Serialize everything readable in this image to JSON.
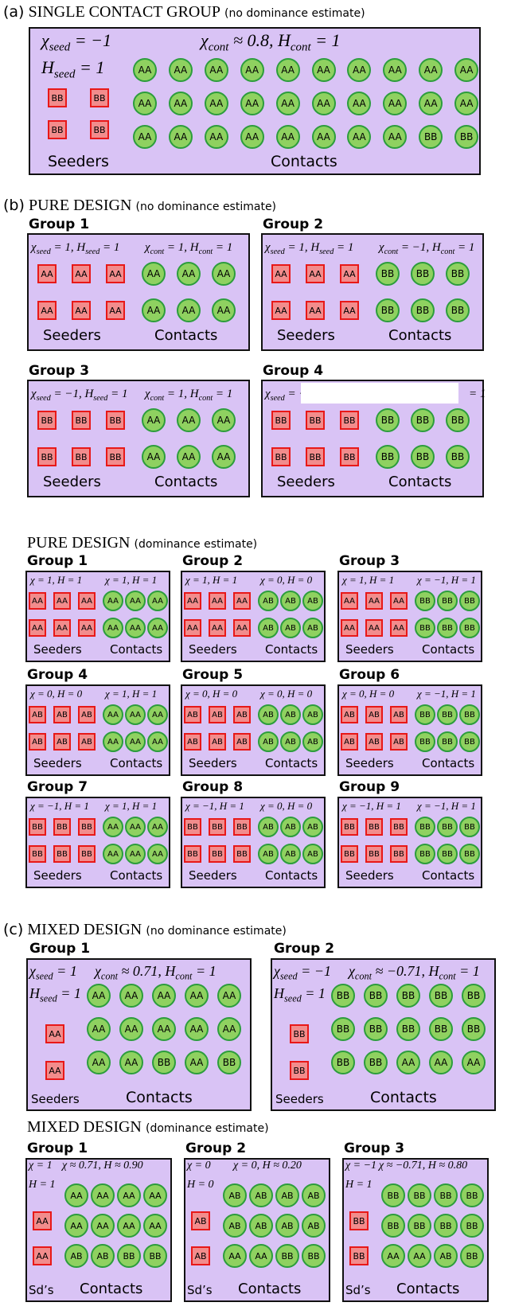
{
  "sections": {
    "a_letter": "(a)",
    "a_title": "SINGLE CONTACT GROUP",
    "a_note": "(no dominance estimate)",
    "b_letter": "(b)",
    "b_title": "PURE DESIGN",
    "b_note": "(no dominance estimate)",
    "b2_title": "PURE DESIGN",
    "b2_note": "(dominance estimate)",
    "c_letter": "(c)",
    "c_title": "MIXED DESIGN",
    "c_note": "(no dominance estimate)",
    "c2_title": "MIXED DESIGN",
    "c2_note": "(dominance estimate)"
  },
  "labels": {
    "seeders": "Seeders",
    "contacts": "Contacts",
    "sds": "Sd’s"
  },
  "colors": {
    "panel": "#d9c3f5",
    "seeder_fill": "#f28c8c",
    "seeder_border": "#e81818",
    "contact_fill": "#8fd160",
    "contact_border": "#2c9d3c"
  },
  "single": {
    "seed_chi": "χ_seed = −1",
    "seed_h": "H_seed = 1",
    "cont": "χ_cont ≈ 0.8,   H_cont = 1",
    "seeders": [
      [
        "BB",
        "BB"
      ],
      [
        "BB",
        "BB"
      ]
    ],
    "contacts": [
      [
        "AA",
        "AA",
        "AA",
        "AA",
        "AA",
        "AA",
        "AA",
        "AA",
        "AA",
        "AA"
      ],
      [
        "AA",
        "AA",
        "AA",
        "AA",
        "AA",
        "AA",
        "AA",
        "AA",
        "AA",
        "AA"
      ],
      [
        "AA",
        "AA",
        "AA",
        "AA",
        "AA",
        "AA",
        "AA",
        "AA",
        "BB",
        "BB"
      ]
    ]
  },
  "pure_nd": [
    {
      "title": "Group 1",
      "seed": "χ_seed = 1, H_seed = 1",
      "cont": "χ_cont = 1, H_cont = 1",
      "seeders": [
        [
          "AA",
          "AA",
          "AA"
        ],
        [
          "AA",
          "AA",
          "AA"
        ]
      ],
      "contacts": [
        [
          "AA",
          "AA",
          "AA"
        ],
        [
          "AA",
          "AA",
          "AA"
        ]
      ]
    },
    {
      "title": "Group 2",
      "seed": "χ_seed = 1, H_seed = 1",
      "cont": "χ_cont = −1, H_cont = 1",
      "seeders": [
        [
          "AA",
          "AA",
          "AA"
        ],
        [
          "AA",
          "AA",
          "AA"
        ]
      ],
      "contacts": [
        [
          "BB",
          "BB",
          "BB"
        ],
        [
          "BB",
          "BB",
          "BB"
        ]
      ]
    },
    {
      "title": "Group 3",
      "seed": "χ_seed = −1, H_seed = 1",
      "cont": "χ_cont = 1, H_cont = 1",
      "seeders": [
        [
          "BB",
          "BB",
          "BB"
        ],
        [
          "BB",
          "BB",
          "BB"
        ]
      ],
      "contacts": [
        [
          "AA",
          "AA",
          "AA"
        ],
        [
          "AA",
          "AA",
          "AA"
        ]
      ]
    },
    {
      "title": "Group 4",
      "seed": "χ_seed = −",
      "cont": "= 1",
      "seeders": [
        [
          "BB",
          "BB",
          "BB"
        ],
        [
          "BB",
          "BB",
          "BB"
        ]
      ],
      "contacts": [
        [
          "BB",
          "BB",
          "BB"
        ],
        [
          "BB",
          "BB",
          "BB"
        ]
      ]
    }
  ],
  "pure_d": [
    {
      "title": "Group 1",
      "seed": "χ = 1, H = 1",
      "cont": "χ = 1, H = 1",
      "seeders": [
        [
          "AA",
          "AA",
          "AA"
        ],
        [
          "AA",
          "AA",
          "AA"
        ]
      ],
      "contacts": [
        [
          "AA",
          "AA",
          "AA"
        ],
        [
          "AA",
          "AA",
          "AA"
        ]
      ]
    },
    {
      "title": "Group 2",
      "seed": "χ = 1, H = 1",
      "cont": "χ = 0, H = 0",
      "seeders": [
        [
          "AA",
          "AA",
          "AA"
        ],
        [
          "AA",
          "AA",
          "AA"
        ]
      ],
      "contacts": [
        [
          "AB",
          "AB",
          "AB"
        ],
        [
          "AB",
          "AB",
          "AB"
        ]
      ]
    },
    {
      "title": "Group 3",
      "seed": "χ = 1, H = 1",
      "cont": "χ = −1, H = 1",
      "seeders": [
        [
          "AA",
          "AA",
          "AA"
        ],
        [
          "AA",
          "AA",
          "AA"
        ]
      ],
      "contacts": [
        [
          "BB",
          "BB",
          "BB"
        ],
        [
          "BB",
          "BB",
          "BB"
        ]
      ]
    },
    {
      "title": "Group 4",
      "seed": "χ = 0, H = 0",
      "cont": "χ = 1, H = 1",
      "seeders": [
        [
          "AB",
          "AB",
          "AB"
        ],
        [
          "AB",
          "AB",
          "AB"
        ]
      ],
      "contacts": [
        [
          "AA",
          "AA",
          "AA"
        ],
        [
          "AA",
          "AA",
          "AA"
        ]
      ]
    },
    {
      "title": "Group 5",
      "seed": "χ = 0, H = 0",
      "cont": "χ = 0, H = 0",
      "seeders": [
        [
          "AB",
          "AB",
          "AB"
        ],
        [
          "AB",
          "AB",
          "AB"
        ]
      ],
      "contacts": [
        [
          "AB",
          "AB",
          "AB"
        ],
        [
          "AB",
          "AB",
          "AB"
        ]
      ]
    },
    {
      "title": "Group 6",
      "seed": "χ = 0, H = 0",
      "cont": "χ = −1, H = 1",
      "seeders": [
        [
          "AB",
          "AB",
          "AB"
        ],
        [
          "AB",
          "AB",
          "AB"
        ]
      ],
      "contacts": [
        [
          "BB",
          "BB",
          "BB"
        ],
        [
          "BB",
          "BB",
          "BB"
        ]
      ]
    },
    {
      "title": "Group 7",
      "seed": "χ = −1, H = 1",
      "cont": "χ = 1, H = 1",
      "seeders": [
        [
          "BB",
          "BB",
          "BB"
        ],
        [
          "BB",
          "BB",
          "BB"
        ]
      ],
      "contacts": [
        [
          "AA",
          "AA",
          "AA"
        ],
        [
          "AA",
          "AA",
          "AA"
        ]
      ]
    },
    {
      "title": "Group 8",
      "seed": "χ = −1, H = 1",
      "cont": "χ = 0, H = 0",
      "seeders": [
        [
          "BB",
          "BB",
          "BB"
        ],
        [
          "BB",
          "BB",
          "BB"
        ]
      ],
      "contacts": [
        [
          "AB",
          "AB",
          "AB"
        ],
        [
          "AB",
          "AB",
          "AB"
        ]
      ]
    },
    {
      "title": "Group 9",
      "seed": "χ = −1, H = 1",
      "cont": "χ = −1, H = 1",
      "seeders": [
        [
          "BB",
          "BB",
          "BB"
        ],
        [
          "BB",
          "BB",
          "BB"
        ]
      ],
      "contacts": [
        [
          "BB",
          "BB",
          "BB"
        ],
        [
          "BB",
          "BB",
          "BB"
        ]
      ]
    }
  ],
  "mixed_nd": [
    {
      "title": "Group 1",
      "seed_chi": "χ_seed = 1",
      "seed_h": "H_seed = 1",
      "cont": "χ_cont ≈ 0.71, H_cont = 1",
      "seeders": [
        "AA",
        "AA"
      ],
      "contacts": [
        [
          "AA",
          "AA",
          "AA",
          "AA",
          "AA"
        ],
        [
          "AA",
          "AA",
          "AA",
          "AA",
          "AA"
        ],
        [
          "AA",
          "AA",
          "BB",
          "AA",
          "BB"
        ]
      ]
    },
    {
      "title": "Group 2",
      "seed_chi": "χ_seed = −1",
      "seed_h": "H_seed = 1",
      "cont": "χ_cont ≈ −0.71, H_cont = 1",
      "seeders": [
        "BB",
        "BB"
      ],
      "contacts": [
        [
          "BB",
          "BB",
          "BB",
          "BB",
          "BB"
        ],
        [
          "BB",
          "BB",
          "BB",
          "BB",
          "BB"
        ],
        [
          "BB",
          "BB",
          "AA",
          "AA",
          "AA"
        ]
      ]
    }
  ],
  "mixed_d": [
    {
      "title": "Group 1",
      "seed_chi": "χ = 1",
      "seed_h": "H = 1",
      "cont": "χ ≈ 0.71, H ≈ 0.90",
      "seeders": [
        "AA",
        "AA"
      ],
      "contacts": [
        [
          "AA",
          "AA",
          "AA",
          "AA"
        ],
        [
          "AA",
          "AA",
          "AA",
          "AA"
        ],
        [
          "AB",
          "AB",
          "BB",
          "BB"
        ]
      ]
    },
    {
      "title": "Group 2",
      "seed_chi": "χ = 0",
      "seed_h": "H = 0",
      "cont": "χ = 0, H ≈ 0.20",
      "seeders": [
        "AB",
        "AB"
      ],
      "contacts": [
        [
          "AB",
          "AB",
          "AB",
          "AB"
        ],
        [
          "AB",
          "AB",
          "AB",
          "AB"
        ],
        [
          "AA",
          "AA",
          "BB",
          "BB"
        ]
      ]
    },
    {
      "title": "Group 3",
      "seed_chi": "χ = −1",
      "seed_h": "H = 1",
      "cont": "χ ≈ −0.71, H ≈ 0.80",
      "seeders": [
        "BB",
        "BB"
      ],
      "contacts": [
        [
          "BB",
          "BB",
          "BB",
          "BB"
        ],
        [
          "BB",
          "BB",
          "BB",
          "BB"
        ],
        [
          "AA",
          "AA",
          "AB",
          "BB"
        ]
      ]
    }
  ]
}
